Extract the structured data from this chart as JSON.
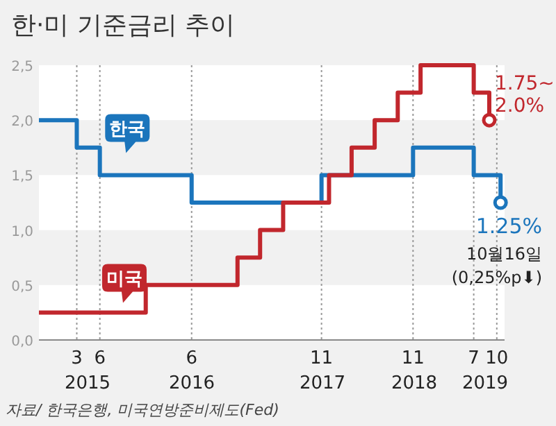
{
  "chart_data": {
    "type": "step",
    "title": "한·미 기준금리 추이",
    "xlim": [
      "2014-10",
      "2019-11"
    ],
    "xticks": [
      {
        "value": "2015-03",
        "label": "3"
      },
      {
        "value": "2015-06",
        "label": "6"
      },
      {
        "value": "2016-06",
        "label": "6"
      },
      {
        "value": "2017-11",
        "label": "11"
      },
      {
        "value": "2018-11",
        "label": "11"
      },
      {
        "value": "2019-07",
        "label": "7"
      },
      {
        "value": "2019-10",
        "label": "10"
      }
    ],
    "ylim": [
      0,
      2.5
    ],
    "yticks": [
      {
        "value": 0,
        "label": "0,0"
      },
      {
        "value": 0.5,
        "label": "0,5"
      },
      {
        "value": 1,
        "label": "1,0"
      },
      {
        "value": 1.5,
        "label": "1,5"
      },
      {
        "value": 2,
        "label": "2,0"
      },
      {
        "value": 2.5,
        "label": "2,5"
      }
    ],
    "grid": true,
    "legend": false,
    "series": [
      {
        "name": "한국",
        "color": "#1b75bc",
        "x": [
          "2014-10",
          "2015-03",
          "2015-06",
          "2016-06",
          "2017-11",
          "2018-11",
          "2019-07",
          "2019-10-16"
        ],
        "values": [
          2.0,
          1.75,
          1.5,
          1.25,
          1.5,
          1.75,
          1.5,
          1.25
        ]
      },
      {
        "name": "미국",
        "color": "#c1272d",
        "x": [
          "2014-10",
          "2015-12",
          "2016-12",
          "2017-03",
          "2017-06",
          "2017-12",
          "2018-03",
          "2018-06",
          "2018-09",
          "2018-12",
          "2019-07",
          "2019-09"
        ],
        "values": [
          0.25,
          0.5,
          0.75,
          1.0,
          1.25,
          1.5,
          1.75,
          2.0,
          2.25,
          2.5,
          2.25,
          2.0
        ]
      }
    ],
    "annotations": [
      "2015",
      "2016",
      "2017",
      "2018",
      "2019",
      {
        "text": "1.75~\n2.0%",
        "x": "2019-09",
        "y": 2.0
      },
      {
        "text": "1.25%",
        "x": "2019-10-16",
        "y": 1.25
      },
      "10월16일",
      "(0,25%p⬇)",
      "자료/ 한국은행, 미국연방준비제도(Fed)"
    ]
  }
}
